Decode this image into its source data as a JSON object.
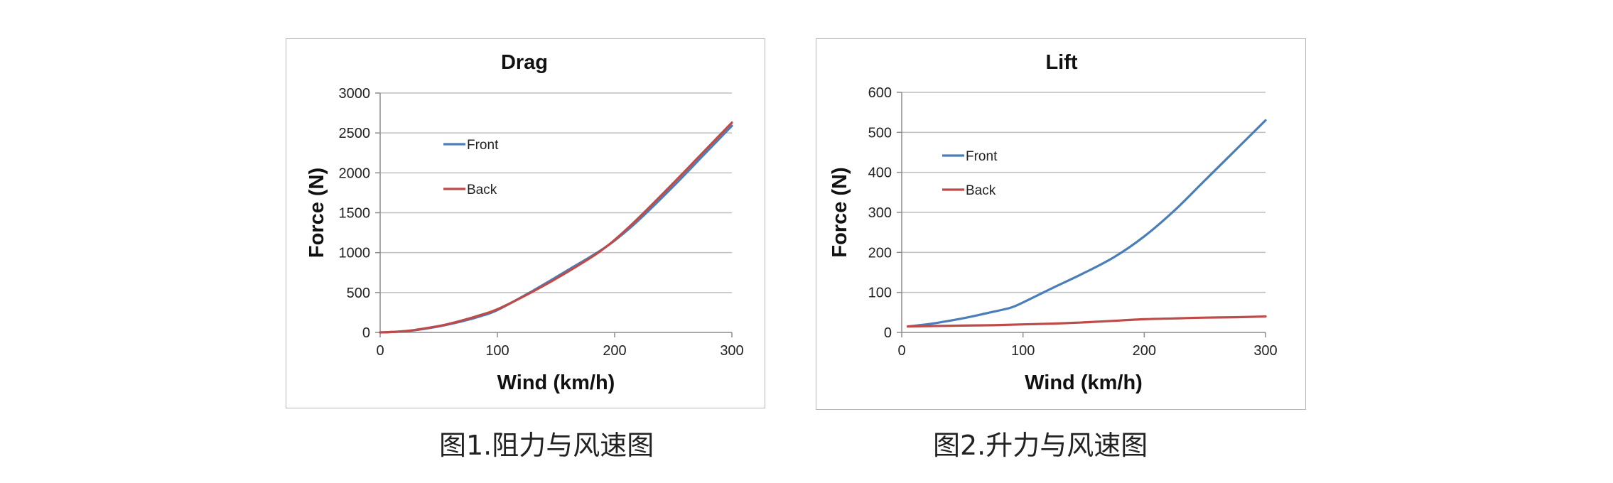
{
  "captions": [
    "图1.阻力与风速图",
    "图2.升力与风速图"
  ],
  "colors": {
    "front": "#4a7ebb",
    "back": "#be4b48",
    "grid": "#bfbfbf"
  },
  "chart_data": [
    {
      "type": "line",
      "title": "Drag",
      "xlabel": "Wind (km/h)",
      "ylabel": "Force (N)",
      "xlim": [
        0,
        300
      ],
      "ylim": [
        0,
        3000
      ],
      "xticks": [
        0,
        100,
        200,
        300
      ],
      "yticks": [
        0,
        500,
        1000,
        1500,
        2000,
        2500,
        3000
      ],
      "grid": true,
      "legend": "inside-upper-left",
      "series": [
        {
          "name": "Front",
          "color": "#4a7ebb",
          "x": [
            0,
            10,
            25,
            40,
            55,
            70,
            85,
            100,
            130,
            160,
            185,
            200,
            220,
            250,
            275,
            300
          ],
          "y": [
            0,
            5,
            20,
            50,
            90,
            140,
            200,
            280,
            520,
            780,
            1000,
            1150,
            1400,
            1830,
            2210,
            2590
          ]
        },
        {
          "name": "Back",
          "color": "#be4b48",
          "x": [
            0,
            10,
            25,
            40,
            55,
            70,
            85,
            100,
            130,
            160,
            185,
            200,
            220,
            250,
            275,
            300
          ],
          "y": [
            0,
            5,
            22,
            55,
            95,
            150,
            215,
            290,
            510,
            760,
            990,
            1160,
            1430,
            1870,
            2250,
            2630
          ]
        }
      ]
    },
    {
      "type": "line",
      "title": "Lift",
      "xlabel": "Wind (km/h)",
      "ylabel": "Force (N)",
      "xlim": [
        0,
        300
      ],
      "ylim": [
        0,
        600
      ],
      "xticks": [
        0,
        100,
        200,
        300
      ],
      "yticks": [
        0,
        100,
        200,
        300,
        400,
        500,
        600
      ],
      "grid": true,
      "legend": "inside-upper-left",
      "series": [
        {
          "name": "Front",
          "color": "#4a7ebb",
          "x": [
            5,
            25,
            50,
            70,
            90,
            100,
            125,
            150,
            175,
            200,
            225,
            250,
            275,
            300
          ],
          "y": [
            15,
            22,
            35,
            48,
            62,
            75,
            112,
            148,
            188,
            240,
            305,
            380,
            455,
            530
          ]
        },
        {
          "name": "Back",
          "color": "#be4b48",
          "x": [
            5,
            25,
            50,
            75,
            100,
            125,
            150,
            175,
            200,
            225,
            250,
            275,
            300
          ],
          "y": [
            15,
            16,
            17,
            18,
            20,
            22,
            25,
            29,
            33,
            35,
            37,
            38,
            40
          ]
        }
      ]
    }
  ]
}
